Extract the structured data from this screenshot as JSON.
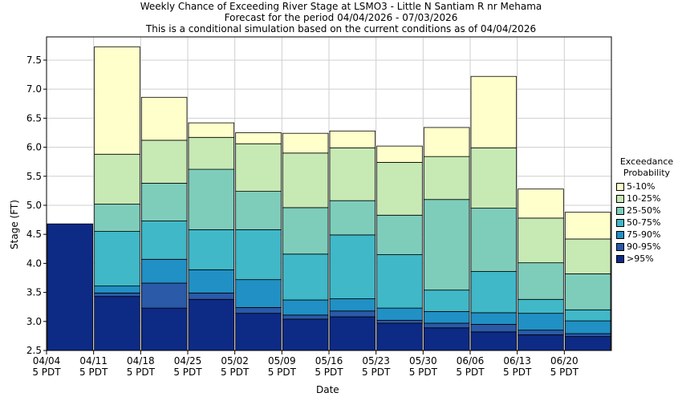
{
  "title_lines": [
    "Weekly Chance of Exceeding River Stage at LSMO3 - Little N Santiam R nr Mehama",
    "Forecast for the period 04/04/2026 - 07/03/2026",
    "This is a conditional simulation based on the current conditions as of 04/04/2026"
  ],
  "chart_data": {
    "type": "bar",
    "subtype": "stacked-range",
    "title": "Weekly Chance of Exceeding River Stage at LSMO3 - Little N Santiam R nr Mehama",
    "xlabel": "Date",
    "ylabel": "Stage (FT)",
    "ylim": [
      2.5,
      7.9
    ],
    "yticks": [
      "2.5",
      "3.0",
      "3.5",
      "4.0",
      "4.5",
      "5.0",
      "5.5",
      "6.0",
      "6.5",
      "7.0",
      "7.5"
    ],
    "x_tick_labels": [
      {
        "date": "04/04",
        "tz": "5 PDT"
      },
      {
        "date": "04/11",
        "tz": "5 PDT"
      },
      {
        "date": "04/18",
        "tz": "5 PDT"
      },
      {
        "date": "04/25",
        "tz": "5 PDT"
      },
      {
        "date": "05/02",
        "tz": "5 PDT"
      },
      {
        "date": "05/09",
        "tz": "5 PDT"
      },
      {
        "date": "05/16",
        "tz": "5 PDT"
      },
      {
        "date": "05/23",
        "tz": "5 PDT"
      },
      {
        "date": "05/30",
        "tz": "5 PDT"
      },
      {
        "date": "06/06",
        "tz": "5 PDT"
      },
      {
        "date": "06/13",
        "tz": "5 PDT"
      },
      {
        "date": "06/20",
        "tz": "5 PDT"
      }
    ],
    "grid": true,
    "legend_title": "Exceedance Probability",
    "legend_position": "right",
    "series": [
      {
        "name": ">95%",
        "color": "#0d2a85"
      },
      {
        "name": "90-95%",
        "color": "#2a5aa8"
      },
      {
        "name": "75-90%",
        "color": "#2190c4"
      },
      {
        "name": "50-75%",
        "color": "#40b8c8"
      },
      {
        "name": "25-50%",
        "color": "#7ecdbb"
      },
      {
        "name": "10-25%",
        "color": "#c7e9b4"
      },
      {
        "name": "5-10%",
        "color": "#ffffcc"
      }
    ],
    "weeks": [
      {
        "start": "04/04",
        "bounds": [
          4.68
        ]
      },
      {
        "start": "04/11",
        "bounds": [
          3.43,
          3.49,
          3.61,
          4.55,
          5.02,
          5.88,
          7.73
        ]
      },
      {
        "start": "04/18",
        "bounds": [
          3.23,
          3.66,
          4.07,
          4.73,
          5.38,
          6.12,
          6.86
        ]
      },
      {
        "start": "04/25",
        "bounds": [
          3.38,
          3.49,
          3.89,
          4.58,
          5.62,
          6.17,
          6.42
        ]
      },
      {
        "start": "05/02",
        "bounds": [
          3.14,
          3.24,
          3.72,
          4.58,
          5.24,
          6.06,
          6.25
        ]
      },
      {
        "start": "05/09",
        "bounds": [
          3.04,
          3.11,
          3.37,
          4.16,
          4.96,
          5.9,
          6.24
        ]
      },
      {
        "start": "05/16",
        "bounds": [
          3.08,
          3.18,
          3.39,
          4.49,
          5.08,
          5.99,
          6.28
        ]
      },
      {
        "start": "05/23",
        "bounds": [
          2.97,
          3.02,
          3.23,
          4.15,
          4.83,
          5.74,
          6.02
        ]
      },
      {
        "start": "05/30",
        "bounds": [
          2.89,
          2.97,
          3.17,
          3.54,
          5.1,
          5.84,
          6.34
        ]
      },
      {
        "start": "06/06",
        "bounds": [
          2.82,
          2.95,
          3.15,
          3.86,
          4.95,
          5.99,
          7.22
        ]
      },
      {
        "start": "06/13",
        "bounds": [
          2.77,
          2.85,
          3.14,
          3.38,
          4.01,
          4.78,
          5.28
        ]
      },
      {
        "start": "06/20",
        "bounds": [
          2.74,
          2.79,
          3.01,
          3.2,
          3.82,
          4.42,
          4.88
        ]
      }
    ]
  }
}
